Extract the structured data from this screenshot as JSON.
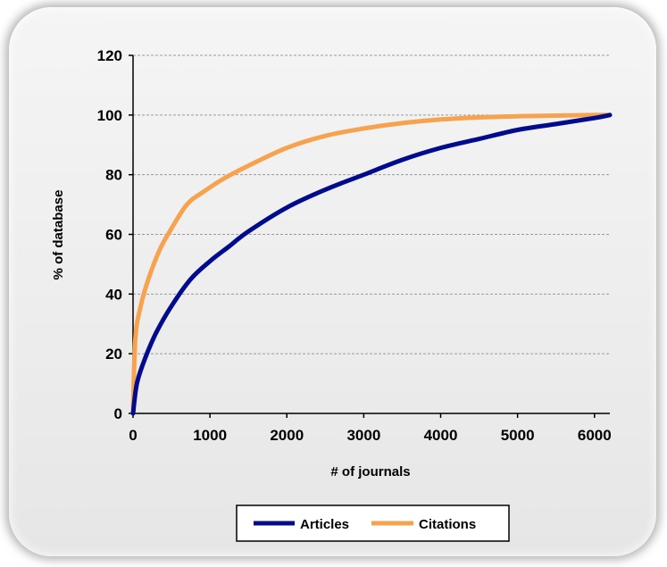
{
  "chart_data": {
    "type": "line",
    "title": "",
    "xlabel": "# of journals",
    "ylabel": "% of database",
    "xlim": [
      0,
      6200
    ],
    "ylim": [
      0,
      120
    ],
    "x_ticks": [
      0,
      1000,
      2000,
      3000,
      4000,
      5000,
      6000
    ],
    "y_ticks": [
      0,
      20,
      40,
      60,
      80,
      100,
      120
    ],
    "grid": "horizontal dashed",
    "legend_position": "bottom",
    "series": [
      {
        "name": "Articles",
        "color": "#000c8c",
        "x": [
          0,
          50,
          150,
          300,
          500,
          750,
          1000,
          1250,
          1500,
          2000,
          2500,
          3000,
          3500,
          4000,
          4500,
          5000,
          5500,
          6000,
          6200
        ],
        "y": [
          0,
          10,
          18,
          27,
          36,
          45,
          51,
          56,
          61,
          69,
          75,
          80,
          85,
          89,
          92,
          95,
          97,
          99,
          100
        ]
      },
      {
        "name": "Citations",
        "color": "#f7a24f",
        "x": [
          0,
          30,
          100,
          200,
          350,
          500,
          700,
          900,
          1200,
          1500,
          2000,
          2500,
          3000,
          3500,
          4000,
          4500,
          5000,
          5500,
          6000,
          6200
        ],
        "y": [
          0,
          25,
          36,
          45,
          55,
          62,
          70,
          74,
          79,
          83,
          89,
          93,
          95.5,
          97.3,
          98.5,
          99.2,
          99.6,
          99.8,
          100,
          100
        ]
      }
    ]
  }
}
